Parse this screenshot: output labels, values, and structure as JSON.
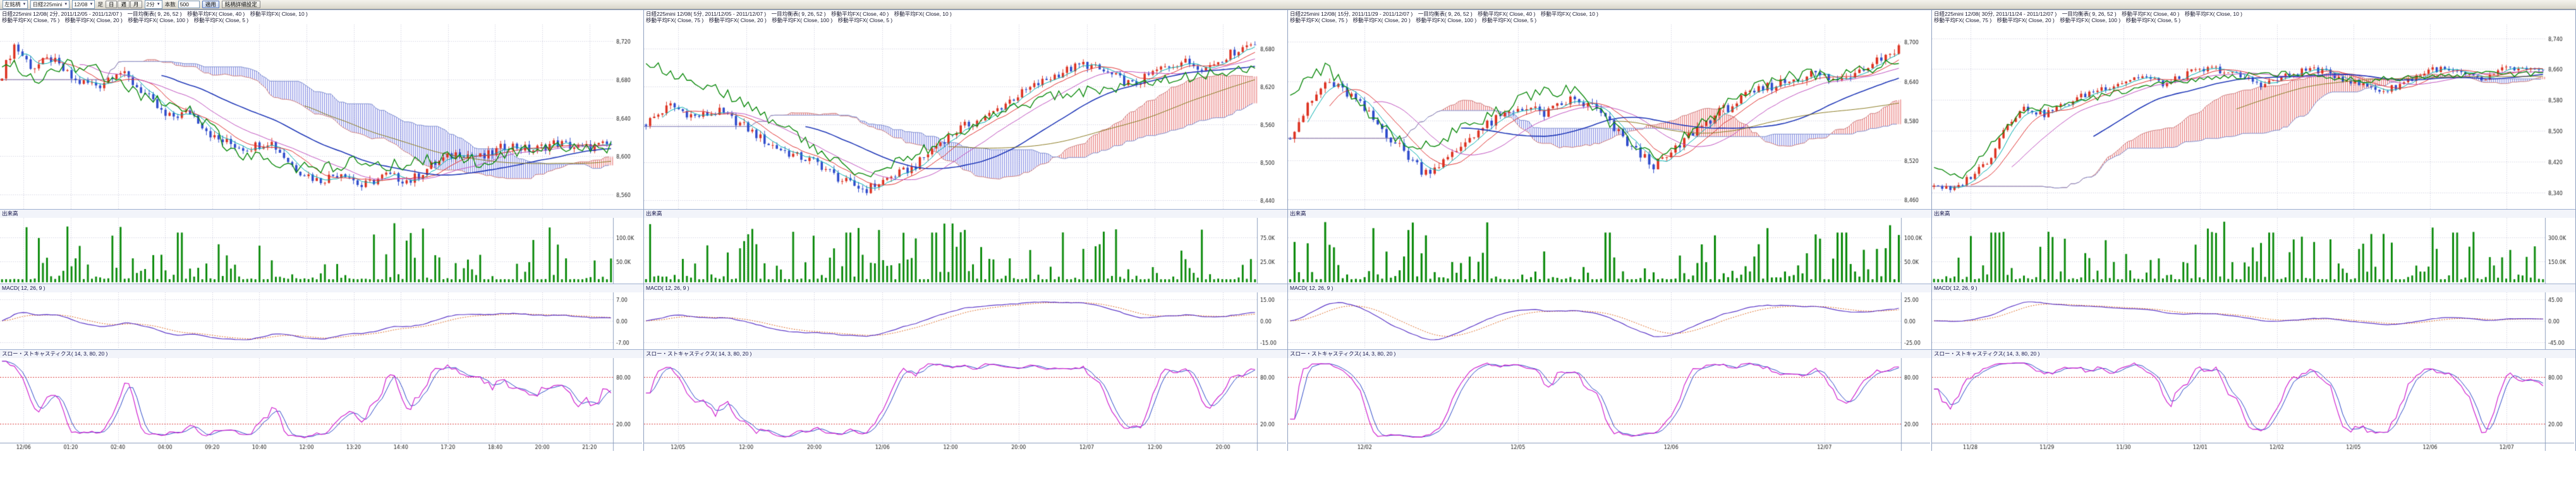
{
  "toolbar": {
    "side_select": "左銘柄",
    "instrument": "日経225mini",
    "contract": "12/08",
    "timeframe_label": "足",
    "period_day": "日",
    "period_week": "週",
    "period_month": "月",
    "minute_select": "2分",
    "bars_label": "本数",
    "bars_value": "500",
    "apply_label": "適用",
    "detail_label": "銘柄詳細設定"
  },
  "panels": [
    {
      "legend1": "日経225mini 12/08( 2分, 2011/12/05 - 2011/12/07 )　一目均衡表( 9, 26, 52 )　移動平均FX( Close, 40 )　移動平均FX( Close, 10 )",
      "legend2": "移動平均FX( Close, 75 )　移動平均FX( Close, 20 )　移動平均FX( Close, 100 )　移動平均FX( Close, 5 )",
      "volume_label": "出来高",
      "macd_label": "MACD( 12, 26, 9 )",
      "stoch_label": "スロー・ストキャスティクス( 14, 3, 80, 20 )",
      "candles": 150,
      "noise": 5,
      "anchors": [
        [
          0,
          8686
        ],
        [
          0.02,
          8716
        ],
        [
          0.05,
          8692
        ],
        [
          0.08,
          8702
        ],
        [
          0.12,
          8678
        ],
        [
          0.16,
          8674
        ],
        [
          0.19,
          8690
        ],
        [
          0.23,
          8668
        ],
        [
          0.27,
          8640
        ],
        [
          0.31,
          8646
        ],
        [
          0.35,
          8618
        ],
        [
          0.4,
          8608
        ],
        [
          0.44,
          8616
        ],
        [
          0.48,
          8588
        ],
        [
          0.52,
          8574
        ],
        [
          0.56,
          8584
        ],
        [
          0.59,
          8568
        ],
        [
          0.63,
          8580
        ],
        [
          0.67,
          8574
        ],
        [
          0.71,
          8592
        ],
        [
          0.75,
          8604
        ],
        [
          0.79,
          8598
        ],
        [
          0.83,
          8612
        ],
        [
          0.87,
          8606
        ],
        [
          0.91,
          8614
        ],
        [
          0.95,
          8608
        ],
        [
          1,
          8612
        ]
      ],
      "overlay": [
        [
          0,
          8700
        ],
        [
          0.06,
          8682
        ],
        [
          0.1,
          8696
        ],
        [
          0.16,
          8688
        ],
        [
          0.22,
          8664
        ],
        [
          0.28,
          8658
        ],
        [
          0.33,
          8638
        ],
        [
          0.38,
          8604
        ],
        [
          0.45,
          8594
        ],
        [
          0.52,
          8584
        ],
        [
          0.58,
          8596
        ],
        [
          0.65,
          8590
        ],
        [
          0.72,
          8600
        ],
        [
          0.78,
          8594
        ],
        [
          0.85,
          8604
        ],
        [
          0.92,
          8608
        ],
        [
          1,
          8610
        ]
      ],
      "overlay_noise": 7,
      "price_min": 8546,
      "price_max": 8736,
      "price_ticks": [
        8720,
        8680,
        8640,
        8600,
        8560
      ],
      "last_price": "8,610",
      "vol_axis": [
        "100.0K",
        "50.0K"
      ],
      "vol_spikes": [
        0.29
      ],
      "macd_axis": [
        "7.00",
        "0.00",
        "-7.00"
      ],
      "stoch_axis": [
        "80.00",
        "20.00"
      ],
      "time_labels": [
        "12/06",
        "01:20",
        "02:40",
        "04:00",
        "09:20",
        "10:40",
        "12:00",
        "13:20",
        "14:40",
        "17:20",
        "18:40",
        "20:00",
        "21:20"
      ]
    },
    {
      "legend1": "日経225mini 12/08( 5分, 2011/12/05 - 2011/12/07 )　一目均衡表( 9, 26, 52 )　移動平均FX( Close, 40 )　移動平均FX( Close, 10 )",
      "legend2": "移動平均FX( Close, 75 )　移動平均FX( Close, 20 )　移動平均FX( Close, 100 )　移動平均FX( Close, 5 )",
      "volume_label": "出来高",
      "macd_label": "MACD( 12, 26, 9 )",
      "stoch_label": "スロー・ストキャスティクス( 14, 3, 80, 20 )",
      "candles": 150,
      "noise": 7,
      "anchors": [
        [
          0,
          8562
        ],
        [
          0.04,
          8590
        ],
        [
          0.08,
          8572
        ],
        [
          0.12,
          8580
        ],
        [
          0.16,
          8558
        ],
        [
          0.2,
          8530
        ],
        [
          0.24,
          8512
        ],
        [
          0.28,
          8500
        ],
        [
          0.32,
          8472
        ],
        [
          0.36,
          8456
        ],
        [
          0.4,
          8476
        ],
        [
          0.44,
          8492
        ],
        [
          0.48,
          8530
        ],
        [
          0.52,
          8556
        ],
        [
          0.56,
          8572
        ],
        [
          0.6,
          8600
        ],
        [
          0.64,
          8622
        ],
        [
          0.68,
          8642
        ],
        [
          0.72,
          8656
        ],
        [
          0.76,
          8640
        ],
        [
          0.8,
          8622
        ],
        [
          0.84,
          8646
        ],
        [
          0.88,
          8660
        ],
        [
          0.92,
          8650
        ],
        [
          0.96,
          8672
        ],
        [
          1,
          8692
        ]
      ],
      "overlay": [
        [
          0,
          8656
        ],
        [
          0.08,
          8630
        ],
        [
          0.15,
          8600
        ],
        [
          0.22,
          8560
        ],
        [
          0.3,
          8510
        ],
        [
          0.36,
          8480
        ],
        [
          0.42,
          8502
        ],
        [
          0.5,
          8540
        ],
        [
          0.58,
          8580
        ],
        [
          0.66,
          8602
        ],
        [
          0.75,
          8616
        ],
        [
          0.85,
          8632
        ],
        [
          1,
          8646
        ]
      ],
      "overlay_noise": 9,
      "price_min": 8428,
      "price_max": 8716,
      "price_ticks": [
        8680,
        8620,
        8560,
        8500,
        8440
      ],
      "last_price": "8,690",
      "vol_axis": [
        "75.0K",
        "25.0K"
      ],
      "vol_spikes": [
        0.33,
        0.47
      ],
      "macd_axis": [
        "15.00",
        "0.00",
        "-15.00"
      ],
      "stoch_axis": [
        "80.00",
        "20.00"
      ],
      "time_labels": [
        "12/05",
        "12:00",
        "20:00",
        "12/06",
        "12:00",
        "20:00",
        "12/07",
        "12:00",
        "20:00"
      ]
    },
    {
      "legend1": "日経225mini 12/08( 15分, 2011/11/29 - 2011/12/07 )　一目均衡表( 9, 26, 52 )　移動平均FX( Close, 40 )　移動平均FX( Close, 10 )",
      "legend2": "移動平均FX( Close, 75 )　移動平均FX( Close, 20 )　移動平均FX( Close, 100 )　移動平均FX( Close, 5 )",
      "volume_label": "出来高",
      "macd_label": "MACD( 12, 26, 9 )",
      "stoch_label": "スロー・ストキャスティクス( 14, 3, 80, 20 )",
      "candles": 140,
      "noise": 8,
      "anchors": [
        [
          0,
          8560
        ],
        [
          0.03,
          8602
        ],
        [
          0.06,
          8640
        ],
        [
          0.1,
          8618
        ],
        [
          0.14,
          8578
        ],
        [
          0.18,
          8540
        ],
        [
          0.22,
          8502
        ],
        [
          0.26,
          8522
        ],
        [
          0.3,
          8560
        ],
        [
          0.34,
          8582
        ],
        [
          0.38,
          8602
        ],
        [
          0.42,
          8590
        ],
        [
          0.46,
          8612
        ],
        [
          0.5,
          8600
        ],
        [
          0.54,
          8560
        ],
        [
          0.57,
          8532
        ],
        [
          0.6,
          8512
        ],
        [
          0.63,
          8532
        ],
        [
          0.66,
          8562
        ],
        [
          0.7,
          8590
        ],
        [
          0.74,
          8612
        ],
        [
          0.78,
          8630
        ],
        [
          0.82,
          8642
        ],
        [
          0.86,
          8652
        ],
        [
          0.9,
          8640
        ],
        [
          0.94,
          8662
        ],
        [
          1,
          8690
        ]
      ],
      "overlay": [
        [
          0,
          8620
        ],
        [
          0.06,
          8660
        ],
        [
          0.12,
          8600
        ],
        [
          0.2,
          8532
        ],
        [
          0.27,
          8562
        ],
        [
          0.33,
          8590
        ],
        [
          0.4,
          8620
        ],
        [
          0.47,
          8630
        ],
        [
          0.53,
          8572
        ],
        [
          0.6,
          8522
        ],
        [
          0.67,
          8572
        ],
        [
          0.74,
          8620
        ],
        [
          0.82,
          8650
        ],
        [
          0.9,
          8648
        ],
        [
          1,
          8668
        ]
      ],
      "overlay_noise": 10,
      "price_min": 8448,
      "price_max": 8724,
      "price_ticks": [
        8700,
        8640,
        8580,
        8520,
        8460
      ],
      "last_price": "8,690",
      "vol_axis": [
        "100.0K",
        "50.0K"
      ],
      "vol_spikes": [
        0.52,
        0.9
      ],
      "macd_axis": [
        "25.00",
        "0.00",
        "-25.00"
      ],
      "stoch_axis": [
        "80.00",
        "20.00"
      ],
      "time_labels": [
        "12/02",
        "12/05",
        "12/06",
        "12/07"
      ]
    },
    {
      "legend1": "日経225mini 12/08( 30分, 2011/11/24 - 2011/12/07 )　一目均衡表( 9, 26, 52 )　移動平均FX( Close, 40 )　移動平均FX( Close, 10 )",
      "legend2": "移動平均FX( Close, 75 )　移動平均FX( Close, 20 )　移動平均FX( Close, 100 )　移動平均FX( Close, 5 )",
      "volume_label": "出来高",
      "macd_label": "MACD( 12, 26, 9 )",
      "stoch_label": "スロー・ストキャスティクス( 14, 3, 80, 20 )",
      "candles": 150,
      "noise": 9,
      "anchors": [
        [
          0,
          8362
        ],
        [
          0.03,
          8342
        ],
        [
          0.06,
          8382
        ],
        [
          0.09,
          8424
        ],
        [
          0.12,
          8522
        ],
        [
          0.15,
          8560
        ],
        [
          0.18,
          8542
        ],
        [
          0.22,
          8572
        ],
        [
          0.26,
          8602
        ],
        [
          0.3,
          8622
        ],
        [
          0.34,
          8642
        ],
        [
          0.38,
          8620
        ],
        [
          0.42,
          8650
        ],
        [
          0.46,
          8662
        ],
        [
          0.5,
          8642
        ],
        [
          0.54,
          8620
        ],
        [
          0.58,
          8642
        ],
        [
          0.62,
          8662
        ],
        [
          0.66,
          8642
        ],
        [
          0.7,
          8620
        ],
        [
          0.74,
          8602
        ],
        [
          0.78,
          8632
        ],
        [
          0.82,
          8662
        ],
        [
          0.86,
          8650
        ],
        [
          0.9,
          8630
        ],
        [
          0.94,
          8662
        ],
        [
          1,
          8652
        ]
      ],
      "overlay": [
        [
          0,
          8400
        ],
        [
          0.05,
          8380
        ],
        [
          0.1,
          8480
        ],
        [
          0.15,
          8556
        ],
        [
          0.22,
          8566
        ],
        [
          0.3,
          8600
        ],
        [
          0.4,
          8630
        ],
        [
          0.5,
          8642
        ],
        [
          0.6,
          8650
        ],
        [
          0.7,
          8630
        ],
        [
          0.8,
          8640
        ],
        [
          0.9,
          8646
        ],
        [
          1,
          8650
        ]
      ],
      "overlay_noise": 8,
      "price_min": 8300,
      "price_max": 8772,
      "price_ticks": [
        8740,
        8660,
        8580,
        8500,
        8420,
        8340
      ],
      "last_price": "8,650",
      "vol_axis": [
        "300.0K",
        "150.0K"
      ],
      "vol_spikes": [
        0.1,
        0.55,
        0.85
      ],
      "macd_axis": [
        "45.00",
        "0.00",
        "-45.00"
      ],
      "stoch_axis": [
        "80.00",
        "20.00"
      ],
      "time_labels": [
        "11/28",
        "11/29",
        "11/30",
        "12/01",
        "12/02",
        "12/05",
        "12/06",
        "12/07"
      ]
    }
  ],
  "colors": {
    "candle_up": "#dd3322",
    "candle_down": "#2f4ccc",
    "volume_bar": "#0a8a0a",
    "cloud_bull": "rgba(226,92,92,0.9)",
    "cloud_bear": "rgba(104,114,222,0.9)",
    "ma5": "#00b0b0",
    "ma10": "#e03030",
    "ma20": "#c050c0",
    "ma40": "#2038b8",
    "ma75": "#8a7a20",
    "overlay_green": "#0c8a0c",
    "macd_line": "#5a35c8",
    "macd_signal": "#e06820",
    "stoch_k": "#d020d0",
    "stoch_d": "#2a46c8",
    "ob_os_line": "#dd4444"
  }
}
